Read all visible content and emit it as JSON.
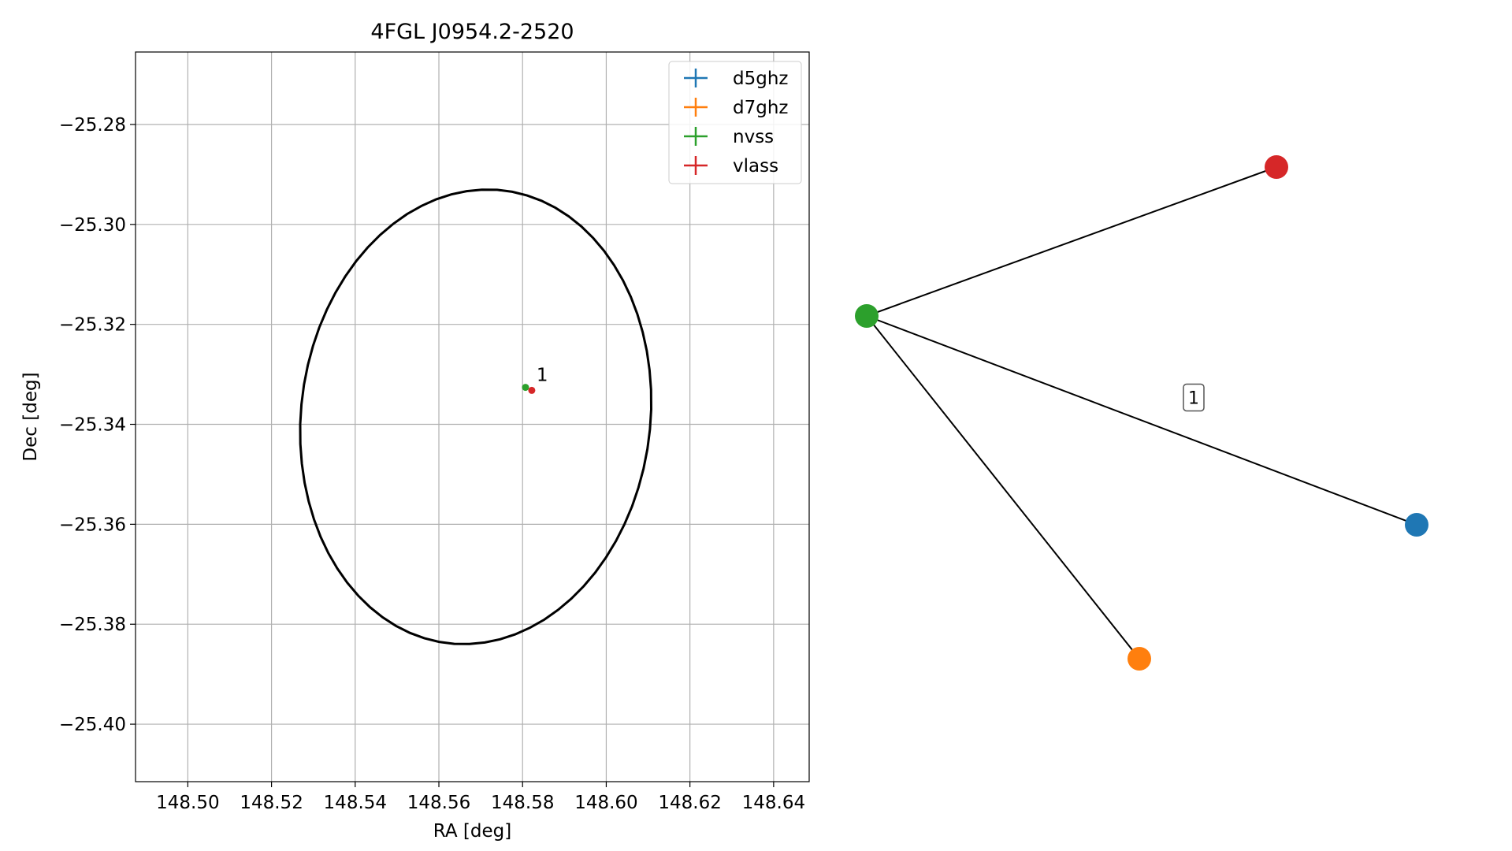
{
  "chart_data": [
    {
      "type": "scatter",
      "title": "4FGL J0954.2-2520",
      "xlabel": "RA [deg]",
      "ylabel": "Dec [deg]",
      "xlim": [
        148.4875,
        148.6485
      ],
      "ylim": [
        -25.4115,
        -25.2655
      ],
      "xticks": [
        148.5,
        148.52,
        148.54,
        148.56,
        148.58,
        148.6,
        148.62,
        148.64
      ],
      "xtick_labels": [
        "148.50",
        "148.52",
        "148.54",
        "148.56",
        "148.58",
        "148.60",
        "148.62",
        "148.64"
      ],
      "yticks": [
        -25.28,
        -25.3,
        -25.32,
        -25.34,
        -25.36,
        -25.38,
        -25.4
      ],
      "ytick_labels": [
        "−25.28",
        "−25.30",
        "−25.32",
        "−25.34",
        "−25.36",
        "−25.38",
        "−25.40"
      ],
      "grid": true,
      "legend_position": "top-right",
      "series": [
        {
          "name": "d5ghz",
          "color": "#1f77b4",
          "points": []
        },
        {
          "name": "d7ghz",
          "color": "#ff7f0e",
          "points": []
        },
        {
          "name": "nvss",
          "color": "#2ca02c",
          "points": [
            [
              148.5807,
              -25.3326
            ]
          ]
        },
        {
          "name": "vlass",
          "color": "#d62728",
          "points": [
            [
              148.5822,
              -25.3332
            ]
          ]
        }
      ],
      "annotations": [
        {
          "text": "1",
          "x": 148.5822,
          "y": -25.3332
        }
      ],
      "ellipse": {
        "center": [
          148.5688,
          -25.3385
        ],
        "semi_major": 0.046,
        "semi_minor": 0.0414,
        "angle_deg": 70,
        "color": "#000000"
      }
    },
    {
      "type": "network",
      "nodes": [
        {
          "id": "nvss",
          "color": "#2ca02c"
        },
        {
          "id": "vlass",
          "color": "#d62728"
        },
        {
          "id": "d5ghz",
          "color": "#1f77b4"
        },
        {
          "id": "d7ghz",
          "color": "#ff7f0e"
        }
      ],
      "edges": [
        {
          "source": "nvss",
          "target": "vlass"
        },
        {
          "source": "nvss",
          "target": "d5ghz",
          "label": "1"
        },
        {
          "source": "nvss",
          "target": "d7ghz"
        }
      ]
    }
  ]
}
